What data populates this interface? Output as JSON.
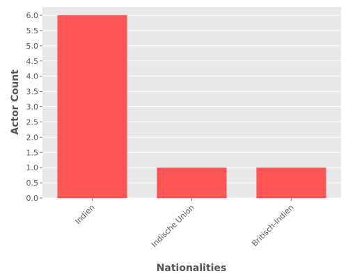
{
  "chart_data": {
    "type": "bar",
    "categories": [
      "Indien",
      "Indische Union",
      "Britisch-Indien"
    ],
    "values": [
      6,
      1,
      1
    ],
    "xlabel": "Nationalities",
    "ylabel": "Actor Count",
    "ylim": [
      0,
      6.3
    ],
    "yticks": [
      0.0,
      0.5,
      1.0,
      1.5,
      2.0,
      2.5,
      3.0,
      3.5,
      4.0,
      4.5,
      5.0,
      5.5,
      6.0
    ],
    "ytick_labels": [
      "0.0",
      "0.5",
      "1.0",
      "1.5",
      "2.0",
      "2.5",
      "3.0",
      "3.5",
      "4.0",
      "4.5",
      "5.0",
      "5.5",
      "6.0"
    ],
    "grid": true,
    "bar_color": "#ff5555",
    "plot_background": "#e8e8e8",
    "grid_color": "#ffffff"
  }
}
